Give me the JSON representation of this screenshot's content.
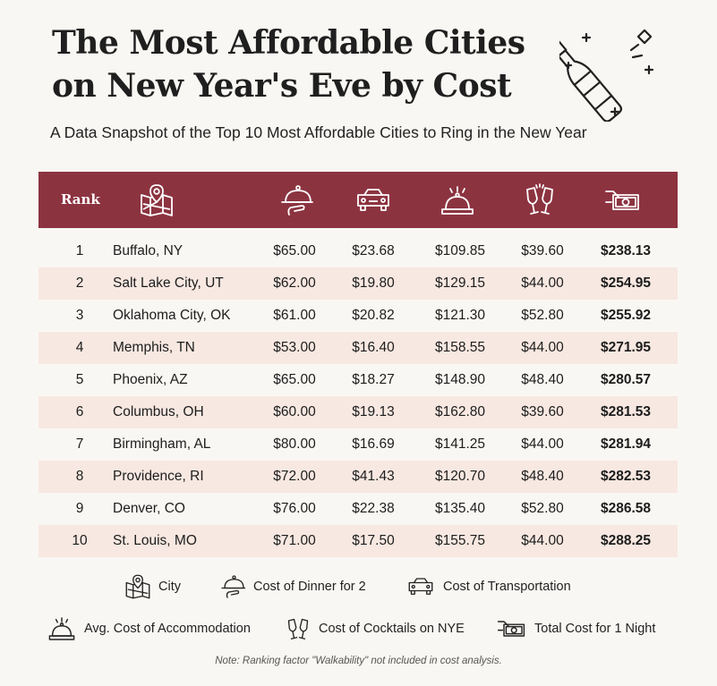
{
  "title": "The Most Affordable Cities on New Year's Eve by Cost",
  "subtitle": "A Data Snapshot of the Top 10 Most Affordable Cities to Ring in the New Year",
  "colors": {
    "header": "#8c3340",
    "alt_row": "#f7e8e1",
    "background": "#f9f7f3"
  },
  "table": {
    "rank_header": "Rank",
    "header_icons": [
      "map-icon",
      "dinner-cloche-icon",
      "car-icon",
      "service-bell-icon",
      "champagne-glasses-icon",
      "money-icon"
    ],
    "rows": [
      {
        "rank": "1",
        "city": "Buffalo, NY",
        "dinner": "$65.00",
        "transport": "$23.68",
        "accommodation": "$109.85",
        "cocktails": "$39.60",
        "total": "$238.13"
      },
      {
        "rank": "2",
        "city": "Salt Lake City, UT",
        "dinner": "$62.00",
        "transport": "$19.80",
        "accommodation": "$129.15",
        "cocktails": "$44.00",
        "total": "$254.95"
      },
      {
        "rank": "3",
        "city": "Oklahoma City, OK",
        "dinner": "$61.00",
        "transport": "$20.82",
        "accommodation": "$121.30",
        "cocktails": "$52.80",
        "total": "$255.92"
      },
      {
        "rank": "4",
        "city": "Memphis, TN",
        "dinner": "$53.00",
        "transport": "$16.40",
        "accommodation": "$158.55",
        "cocktails": "$44.00",
        "total": "$271.95"
      },
      {
        "rank": "5",
        "city": "Phoenix, AZ",
        "dinner": "$65.00",
        "transport": "$18.27",
        "accommodation": "$148.90",
        "cocktails": "$48.40",
        "total": "$280.57"
      },
      {
        "rank": "6",
        "city": "Columbus, OH",
        "dinner": "$60.00",
        "transport": "$19.13",
        "accommodation": "$162.80",
        "cocktails": "$39.60",
        "total": "$281.53"
      },
      {
        "rank": "7",
        "city": "Birmingham, AL",
        "dinner": "$80.00",
        "transport": "$16.69",
        "accommodation": "$141.25",
        "cocktails": "$44.00",
        "total": "$281.94"
      },
      {
        "rank": "8",
        "city": "Providence, RI",
        "dinner": "$72.00",
        "transport": "$41.43",
        "accommodation": "$120.70",
        "cocktails": "$48.40",
        "total": "$282.53"
      },
      {
        "rank": "9",
        "city": "Denver, CO",
        "dinner": "$76.00",
        "transport": "$22.38",
        "accommodation": "$135.40",
        "cocktails": "$52.80",
        "total": "$286.58"
      },
      {
        "rank": "10",
        "city": "St. Louis, MO",
        "dinner": "$71.00",
        "transport": "$17.50",
        "accommodation": "$155.75",
        "cocktails": "$44.00",
        "total": "$288.25"
      }
    ]
  },
  "legend": {
    "city": "City",
    "dinner": "Cost of Dinner for 2",
    "transport": "Cost of Transportation",
    "accommodation": "Avg. Cost of Accommodation",
    "cocktails": "Cost of Cocktails on NYE",
    "total": "Total Cost for 1 Night"
  },
  "note": "Note: Ranking factor \"Walkability\" not included in cost analysis."
}
